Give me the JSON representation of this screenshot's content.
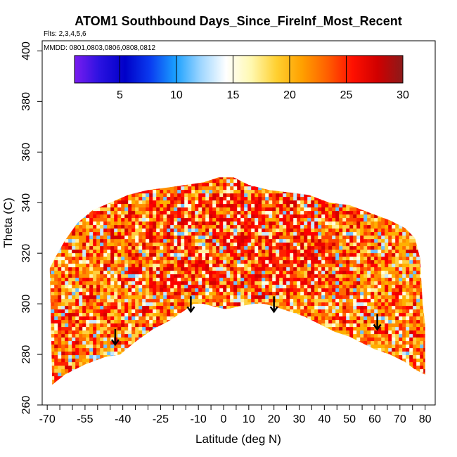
{
  "chart_data": {
    "type": "heatmap",
    "title": "ATOM1 Southbound Days_Since_FireInf_Most_Recent",
    "flights_note": "Flts: 2,3,4,5,6",
    "dates_note": "MMDD: 0801,0803,0806,0808,0812",
    "xlabel": "Latitude (deg N)",
    "ylabel": "Theta (C)",
    "xlim": [
      -72,
      84
    ],
    "ylim": [
      260,
      404
    ],
    "x_tick_labels": [
      "-70",
      "-55",
      "-40",
      "-25",
      "-10",
      "0",
      "10",
      "20",
      "30",
      "40",
      "50",
      "60",
      "70",
      "80"
    ],
    "x_tick_values": [
      -70,
      -55,
      -40,
      -25,
      -10,
      0,
      10,
      20,
      30,
      40,
      50,
      60,
      70,
      80
    ],
    "x_tick_label_texts": [
      {
        "v": -70,
        "t": "-70"
      },
      {
        "v": -55,
        "t": "-55"
      },
      {
        "v": -40,
        "t": "-40"
      },
      {
        "v": -25,
        "t": "-25"
      },
      {
        "v": -10,
        "t": "-10"
      },
      {
        "v": 0,
        "t": "0"
      },
      {
        "v": 10,
        "t": "10"
      },
      {
        "v": 20,
        "t": "20"
      },
      {
        "v": 30,
        "t": "30"
      },
      {
        "v": 40,
        "t": "40"
      },
      {
        "v": 50,
        "t": "50"
      },
      {
        "v": 60,
        "t": "60"
      },
      {
        "v": 70,
        "t": "70"
      },
      {
        "v": 80,
        "t": "80"
      }
    ],
    "x_minor_ticks": [
      -70,
      -65,
      -60,
      -55,
      -50,
      -45,
      -40,
      -35,
      -30,
      -25,
      -20,
      -15,
      -10,
      -5,
      0,
      5,
      10,
      15,
      20,
      25,
      30,
      35,
      40,
      45,
      50,
      55,
      60,
      65,
      70,
      75,
      80,
      85
    ],
    "y_ticks": [
      {
        "v": 260,
        "t": "260"
      },
      {
        "v": 280,
        "t": "280"
      },
      {
        "v": 300,
        "t": "300"
      },
      {
        "v": 320,
        "t": "320"
      },
      {
        "v": 340,
        "t": "340"
      },
      {
        "v": 360,
        "t": "360"
      },
      {
        "v": 380,
        "t": "380"
      },
      {
        "v": 400,
        "t": "400"
      }
    ],
    "colorbar": {
      "range": [
        1,
        30
      ],
      "ticks": [
        {
          "v": 5,
          "t": "5"
        },
        {
          "v": 10,
          "t": "10"
        },
        {
          "v": 15,
          "t": "15"
        },
        {
          "v": 20,
          "t": "20"
        },
        {
          "v": 25,
          "t": "25"
        },
        {
          "v": 30,
          "t": "30"
        }
      ],
      "colors": [
        "#7a1cf0",
        "#2a12e0",
        "#0000c8",
        "#0a3cf0",
        "#1aa0ff",
        "#9ed6ff",
        "#ffffff",
        "#fff8b0",
        "#ffd030",
        "#ffa000",
        "#ff6000",
        "#ff1000",
        "#d00000",
        "#8b1a1a"
      ]
    },
    "curtain_top": [
      [
        -69,
        314
      ],
      [
        -67,
        318
      ],
      [
        -63,
        325
      ],
      [
        -58,
        332
      ],
      [
        -52,
        337
      ],
      [
        -45,
        340
      ],
      [
        -38,
        343
      ],
      [
        -30,
        345
      ],
      [
        -22,
        346
      ],
      [
        -15,
        347
      ],
      [
        -8,
        348
      ],
      [
        -2,
        350
      ],
      [
        4,
        350
      ],
      [
        10,
        347
      ],
      [
        18,
        345
      ],
      [
        26,
        344
      ],
      [
        34,
        343
      ],
      [
        42,
        340
      ],
      [
        50,
        339
      ],
      [
        58,
        336
      ],
      [
        66,
        333
      ],
      [
        72,
        330
      ],
      [
        76,
        326
      ],
      [
        78,
        318
      ],
      [
        79,
        300
      ],
      [
        80,
        292
      ]
    ],
    "curtain_bottom": [
      [
        -68,
        268
      ],
      [
        -63,
        272
      ],
      [
        -55,
        276
      ],
      [
        -47,
        279
      ],
      [
        -41,
        280
      ],
      [
        -35,
        285
      ],
      [
        -28,
        290
      ],
      [
        -22,
        293
      ],
      [
        -16,
        297
      ],
      [
        -12,
        300
      ],
      [
        -8,
        300
      ],
      [
        -4,
        299
      ],
      [
        0,
        298
      ],
      [
        2,
        298
      ],
      [
        6,
        299
      ],
      [
        12,
        300
      ],
      [
        16,
        300
      ],
      [
        20,
        299
      ],
      [
        26,
        297
      ],
      [
        32,
        295
      ],
      [
        38,
        292
      ],
      [
        44,
        289
      ],
      [
        50,
        287
      ],
      [
        56,
        284
      ],
      [
        60,
        282
      ],
      [
        66,
        280
      ],
      [
        72,
        277
      ],
      [
        76,
        274
      ],
      [
        80,
        272
      ]
    ],
    "arrows_at_latitude": [
      -43,
      -13,
      20,
      61
    ],
    "arrow_top_theta": [
      290,
      303,
      303,
      296
    ]
  }
}
